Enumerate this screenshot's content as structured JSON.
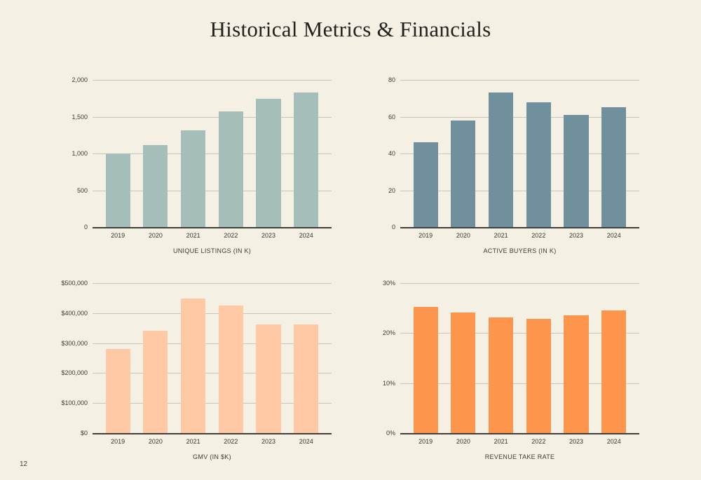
{
  "page": {
    "title": "Historical Metrics & Financials",
    "page_number": "12"
  },
  "colors": {
    "background": "#f4f0e3",
    "gridline": "#c9c5ba",
    "axis_line": "#403f3a",
    "tick_text": "#3b3b36"
  },
  "chart_data": [
    {
      "type": "bar",
      "title": "UNIQUE LISTINGS (IN K)",
      "categories": [
        "2019",
        "2020",
        "2021",
        "2022",
        "2023",
        "2024"
      ],
      "values": [
        1000,
        1110,
        1315,
        1575,
        1745,
        1830
      ],
      "ylim": [
        0,
        2000
      ],
      "ytick_labels": [
        "2,000",
        "1,500",
        "1,000",
        "500",
        "0"
      ],
      "bar_color": "#a6beb9",
      "grid": true,
      "legend": "none"
    },
    {
      "type": "bar",
      "title": "ACTIVE BUYERS (IN K)",
      "categories": [
        "2019",
        "2020",
        "2021",
        "2022",
        "2023",
        "2024"
      ],
      "values": [
        46,
        58,
        73,
        68,
        61,
        65
      ],
      "ylim": [
        0,
        80
      ],
      "ytick_labels": [
        "80",
        "60",
        "40",
        "20",
        "0"
      ],
      "bar_color": "#6f909c",
      "grid": true,
      "legend": "none"
    },
    {
      "type": "bar",
      "title": "GMV (IN $K)",
      "categories": [
        "2019",
        "2020",
        "2021",
        "2022",
        "2023",
        "2024"
      ],
      "values": [
        280000,
        342000,
        448000,
        425000,
        362000,
        362000
      ],
      "ylim": [
        0,
        500000
      ],
      "ytick_labels": [
        "$500,000",
        "$400,000",
        "$300,000",
        "$200,000",
        "$100,000",
        "$0"
      ],
      "bar_color": "#fec9a4",
      "grid": true,
      "legend": "none"
    },
    {
      "type": "bar",
      "title": "REVENUE TAKE RATE",
      "categories": [
        "2019",
        "2020",
        "2021",
        "2022",
        "2023",
        "2024"
      ],
      "values": [
        25.3,
        24.1,
        23.1,
        22.9,
        23.5,
        24.6
      ],
      "ylim": [
        0,
        30
      ],
      "ytick_labels": [
        "30%",
        "20%",
        "10%",
        "0%"
      ],
      "bar_color": "#fd954d",
      "grid": true,
      "legend": "none"
    }
  ]
}
